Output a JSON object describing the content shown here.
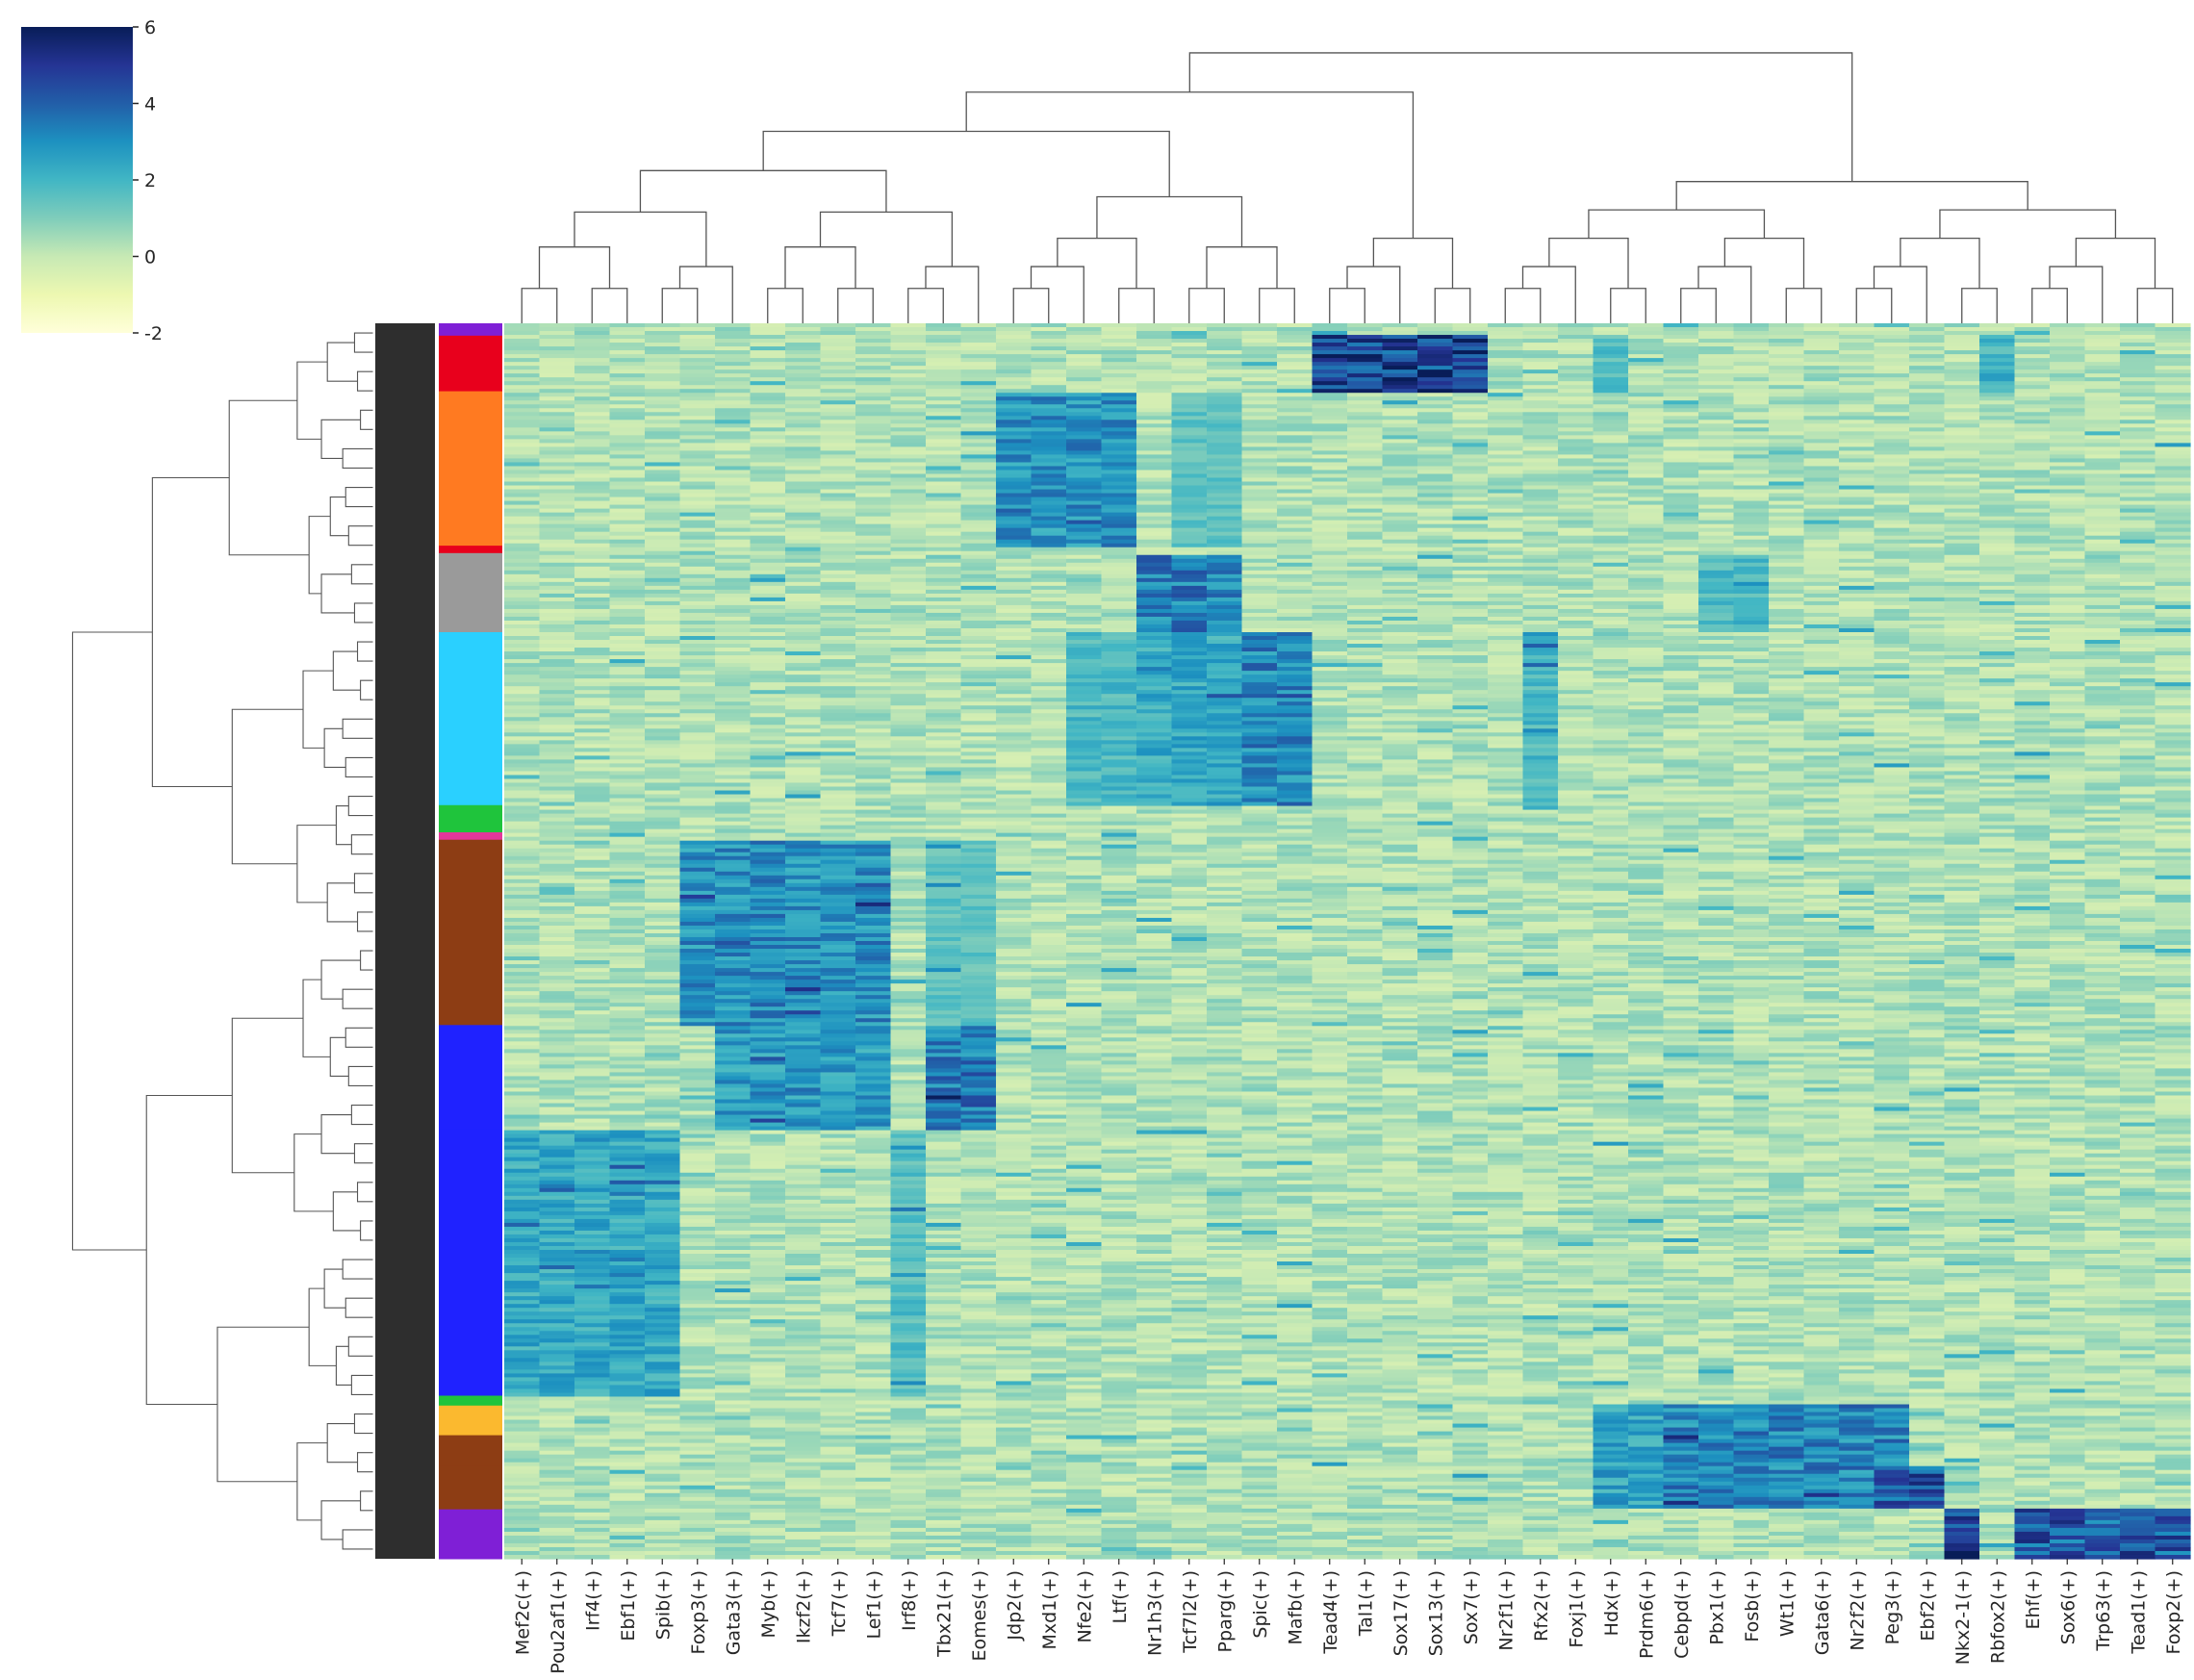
{
  "chart_data": {
    "type": "heatmap",
    "title": "",
    "xlabel": "",
    "ylabel": "",
    "columns": [
      "Mef2c(+)",
      "Pou2af1(+)",
      "Irf4(+)",
      "Ebf1(+)",
      "Spib(+)",
      "Foxp3(+)",
      "Gata3(+)",
      "Myb(+)",
      "Ikzf2(+)",
      "Tcf7(+)",
      "Lef1(+)",
      "Irf8(+)",
      "Tbx21(+)",
      "Eomes(+)",
      "Jdp2(+)",
      "Mxd1(+)",
      "Nfe2(+)",
      "Ltf(+)",
      "Nr1h3(+)",
      "Tcf7l2(+)",
      "Pparg(+)",
      "Spic(+)",
      "Mafb(+)",
      "Tead4(+)",
      "Tal1(+)",
      "Sox17(+)",
      "Sox13(+)",
      "Sox7(+)",
      "Nr2f1(+)",
      "Rfx2(+)",
      "Foxj1(+)",
      "Hdx(+)",
      "Prdm6(+)",
      "Cebpd(+)",
      "Pbx1(+)",
      "Fosb(+)",
      "Wt1(+)",
      "Gata6(+)",
      "Nr2f2(+)",
      "Peg3(+)",
      "Ebf2(+)",
      "Nkx2-1(+)",
      "Rbfox2(+)",
      "Ehf(+)",
      "Sox6(+)",
      "Trp63(+)",
      "Tead1(+)",
      "Foxp2(+)"
    ],
    "colorbar": {
      "ticks": [
        -2,
        0,
        2,
        4,
        6
      ],
      "tick_labels": [
        "-2",
        "0",
        "2",
        "4",
        "6"
      ],
      "range": [
        -2,
        6
      ],
      "colormap": "YlGnBu",
      "stops": [
        "#ffffd9",
        "#edf8b1",
        "#c7e9b4",
        "#7fcdbb",
        "#41b6c4",
        "#1d91c0",
        "#225ea8",
        "#253494",
        "#081d58"
      ]
    },
    "row_clusters": [
      {
        "color": "#7f1fd6",
        "start": 0.0,
        "end": 0.01
      },
      {
        "color": "#e8001c",
        "start": 0.01,
        "end": 0.055
      },
      {
        "color": "#ff7a21",
        "start": 0.055,
        "end": 0.18
      },
      {
        "color": "#e8001c",
        "start": 0.18,
        "end": 0.186
      },
      {
        "color": "#9a9a9a",
        "start": 0.186,
        "end": 0.25
      },
      {
        "color": "#2ad0ff",
        "start": 0.25,
        "end": 0.39
      },
      {
        "color": "#1fc43c",
        "start": 0.39,
        "end": 0.412
      },
      {
        "color": "#e2389a",
        "start": 0.412,
        "end": 0.418
      },
      {
        "color": "#8d3d14",
        "start": 0.418,
        "end": 0.568
      },
      {
        "color": "#1f22ff",
        "start": 0.568,
        "end": 0.652
      },
      {
        "color": "#1f22ff",
        "start": 0.652,
        "end": 0.868
      },
      {
        "color": "#1fc43c",
        "start": 0.868,
        "end": 0.876
      },
      {
        "color": "#fbb92f",
        "start": 0.876,
        "end": 0.9
      },
      {
        "color": "#8d3d14",
        "start": 0.9,
        "end": 0.925
      },
      {
        "color": "#8d3d14",
        "start": 0.925,
        "end": 0.96
      },
      {
        "color": "#7f1fd6",
        "start": 0.96,
        "end": 1.0
      }
    ],
    "blocks": [
      {
        "rows": [
          0.01,
          0.055
        ],
        "cols": [
          23,
          27
        ],
        "value": 5.8
      },
      {
        "rows": [
          0.01,
          0.055
        ],
        "cols": [
          31,
          31
        ],
        "value": 2.0
      },
      {
        "rows": [
          0.01,
          0.055
        ],
        "cols": [
          42,
          42
        ],
        "value": 2.5
      },
      {
        "rows": [
          0.055,
          0.18
        ],
        "cols": [
          14,
          17
        ],
        "value": 3.5
      },
      {
        "rows": [
          0.055,
          0.18
        ],
        "cols": [
          19,
          20
        ],
        "value": 1.8
      },
      {
        "rows": [
          0.186,
          0.25
        ],
        "cols": [
          18,
          20
        ],
        "value": 4.0
      },
      {
        "rows": [
          0.186,
          0.25
        ],
        "cols": [
          34,
          35
        ],
        "value": 2.2
      },
      {
        "rows": [
          0.25,
          0.39
        ],
        "cols": [
          18,
          20
        ],
        "value": 2.8
      },
      {
        "rows": [
          0.25,
          0.39
        ],
        "cols": [
          21,
          22
        ],
        "value": 3.8
      },
      {
        "rows": [
          0.25,
          0.39
        ],
        "cols": [
          16,
          17
        ],
        "value": 2.2
      },
      {
        "rows": [
          0.25,
          0.39
        ],
        "cols": [
          29,
          29
        ],
        "value": 2.2
      },
      {
        "rows": [
          0.418,
          0.568
        ],
        "cols": [
          5,
          10
        ],
        "value": 3.6
      },
      {
        "rows": [
          0.418,
          0.568
        ],
        "cols": [
          12,
          13
        ],
        "value": 1.8
      },
      {
        "rows": [
          0.568,
          0.652
        ],
        "cols": [
          6,
          10
        ],
        "value": 3.2
      },
      {
        "rows": [
          0.568,
          0.652
        ],
        "cols": [
          12,
          13
        ],
        "value": 4.2
      },
      {
        "rows": [
          0.652,
          0.868
        ],
        "cols": [
          0,
          4
        ],
        "value": 2.8
      },
      {
        "rows": [
          0.652,
          0.868
        ],
        "cols": [
          11,
          11
        ],
        "value": 2.0
      },
      {
        "rows": [
          0.876,
          0.96
        ],
        "cols": [
          33,
          39
        ],
        "value": 3.8
      },
      {
        "rows": [
          0.876,
          0.96
        ],
        "cols": [
          31,
          32
        ],
        "value": 3.0
      },
      {
        "rows": [
          0.925,
          0.96
        ],
        "cols": [
          39,
          40
        ],
        "value": 5.2
      },
      {
        "rows": [
          0.96,
          1.0
        ],
        "cols": [
          43,
          47
        ],
        "value": 5.0
      },
      {
        "rows": [
          0.96,
          1.0
        ],
        "cols": [
          41,
          41
        ],
        "value": 5.8
      }
    ],
    "column_dendrogram": [
      {
        "a": [
          0,
          0
        ],
        "b": [
          1,
          0
        ],
        "h": 0.4
      },
      {
        "a": [
          2,
          0
        ],
        "b": [
          3,
          0
        ],
        "h": 0.18
      },
      {
        "a": [
          4,
          0
        ],
        "b": [
          0,
          0.18
        ],
        "h": 0.22
      },
      {
        "a": [
          0,
          0.4
        ],
        "b": [
          0,
          0.22
        ],
        "h": 0.55
      },
      {
        "a": [
          7,
          0
        ],
        "b": [
          8,
          0
        ],
        "h": 0.35
      },
      {
        "a": [
          9,
          0
        ],
        "b": [
          10,
          0
        ],
        "h": 0.2
      },
      {
        "a": [
          0,
          0.35
        ],
        "b": [
          0,
          0.2
        ],
        "h": 0.48
      },
      {
        "a": [
          6,
          0
        ],
        "b": [
          0,
          0.48
        ],
        "h": 0.58
      },
      {
        "a": [
          5,
          0
        ],
        "b": [
          0,
          0.58
        ],
        "h": 0.64
      },
      {
        "a": [
          12,
          0
        ],
        "b": [
          13,
          0
        ],
        "h": 0.22
      },
      {
        "a": [
          11,
          0
        ],
        "b": [
          0,
          0.22
        ],
        "h": 0.62
      },
      {
        "a": [
          0,
          0.64
        ],
        "b": [
          0,
          0.62
        ],
        "h": 0.84
      },
      {
        "a": [
          0,
          0.55
        ],
        "b": [
          0,
          0.84
        ],
        "h": 1.35
      }
    ]
  }
}
